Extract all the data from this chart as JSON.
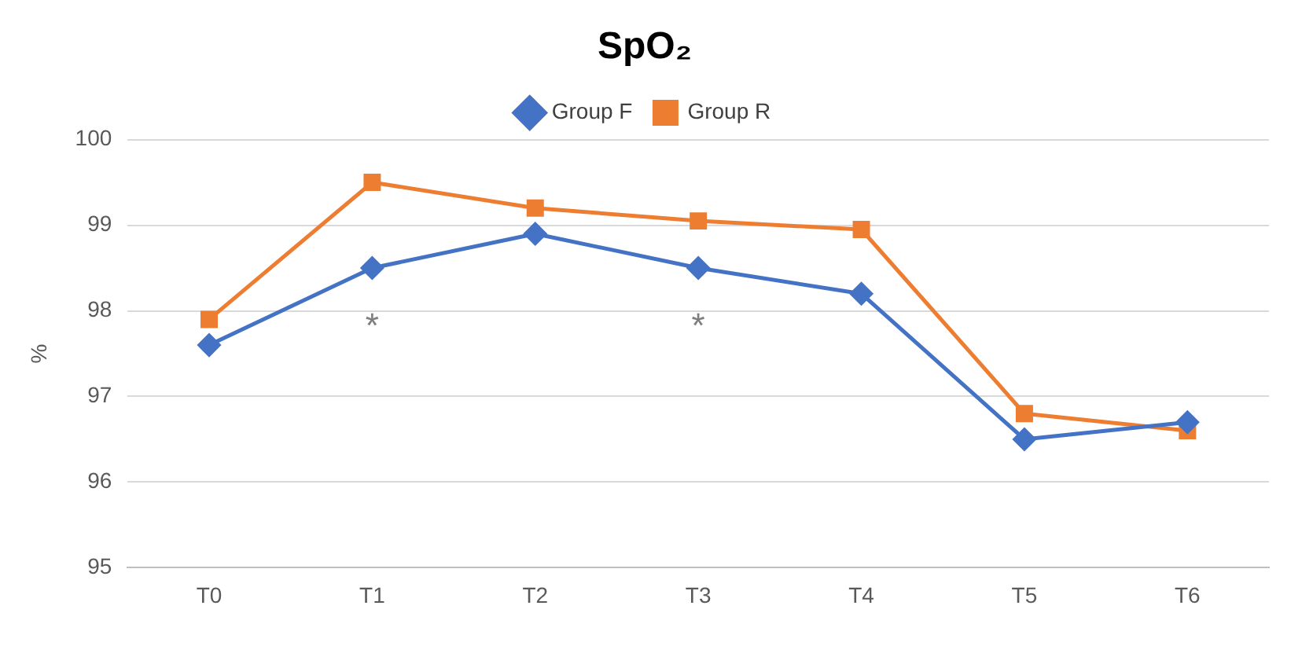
{
  "chart_data": {
    "type": "line",
    "title": "SpO₂",
    "ylabel": "%",
    "categories": [
      "T0",
      "T1",
      "T2",
      "T3",
      "T4",
      "T5",
      "T6"
    ],
    "series": [
      {
        "name": "Group F",
        "color": "#4472c4",
        "marker": "diamond",
        "values": [
          97.6,
          98.5,
          98.9,
          98.5,
          98.2,
          96.5,
          96.7
        ]
      },
      {
        "name": "Group R",
        "color": "#ed7d31",
        "marker": "square",
        "values": [
          97.9,
          99.5,
          99.2,
          99.05,
          98.95,
          96.8,
          96.6
        ]
      }
    ],
    "ylim": [
      95,
      100
    ],
    "yticks": [
      95,
      96,
      97,
      98,
      99,
      100
    ],
    "grid": "y",
    "legend": "top",
    "annotations": [
      "*",
      "*"
    ]
  }
}
